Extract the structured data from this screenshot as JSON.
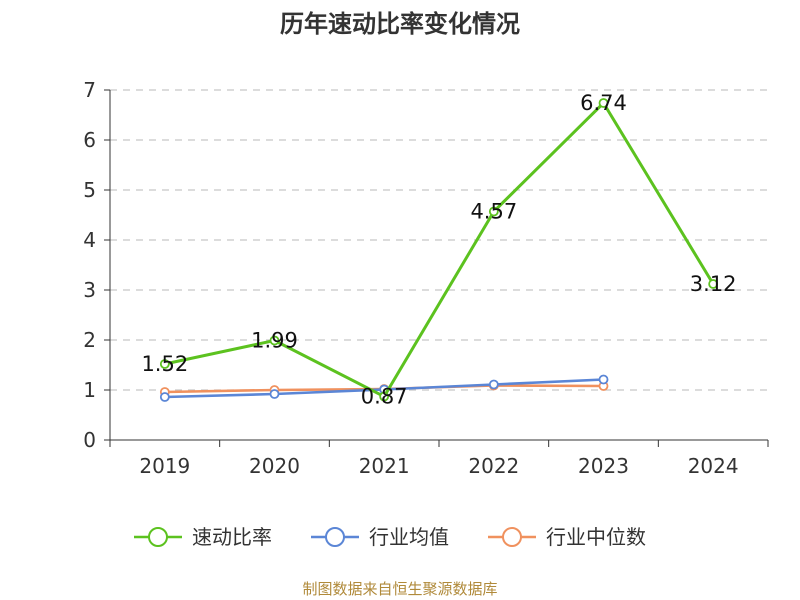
{
  "chart_data": {
    "type": "line",
    "title": "历年速动比率变化情况",
    "categories": [
      "2019",
      "2020",
      "2021",
      "2022",
      "2023",
      "2024"
    ],
    "ylim": [
      0,
      7
    ],
    "yticks": [
      0,
      1,
      2,
      3,
      4,
      5,
      6,
      7
    ],
    "grid": true,
    "series": [
      {
        "name": "速动比率",
        "color": "#5cc21f",
        "values": [
          1.52,
          1.99,
          0.87,
          4.57,
          6.74,
          3.12
        ],
        "show_labels": true
      },
      {
        "name": "行业均值",
        "color": "#5b86d6",
        "values": [
          0.86,
          0.92,
          1.01,
          1.11,
          1.21,
          null
        ],
        "show_labels": false
      },
      {
        "name": "行业中位数",
        "color": "#f0915e",
        "values": [
          0.96,
          1.0,
          1.02,
          1.09,
          1.08,
          null
        ],
        "show_labels": false
      }
    ],
    "legend_position": "bottom"
  },
  "source": "制图数据来自恒生聚源数据库"
}
